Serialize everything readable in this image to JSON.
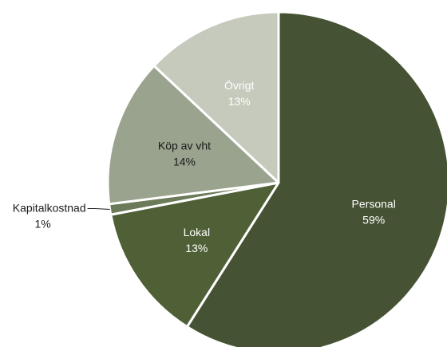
{
  "chart_data": {
    "type": "pie",
    "slices": [
      {
        "label": "Personal",
        "value": 59,
        "value_label": "59%",
        "color": "#455233",
        "text_color": "#ffffff"
      },
      {
        "label": "Lokal",
        "value": 13,
        "value_label": "13%",
        "color": "#4f6037",
        "text_color": "#ffffff"
      },
      {
        "label": "Kapitalkostnad",
        "value": 1,
        "value_label": "1%",
        "color": "#6b7a58",
        "text_color": "#1a1a1a",
        "label_outside": true
      },
      {
        "label": "Köp av vht",
        "value": 14,
        "value_label": "14%",
        "color": "#99a38d",
        "text_color": "#1a1a1a"
      },
      {
        "label": "Övrigt",
        "value": 13,
        "value_label": "13%",
        "color": "#c5cabd",
        "text_color": "#ffffff"
      }
    ],
    "title": "",
    "legend": "none"
  }
}
